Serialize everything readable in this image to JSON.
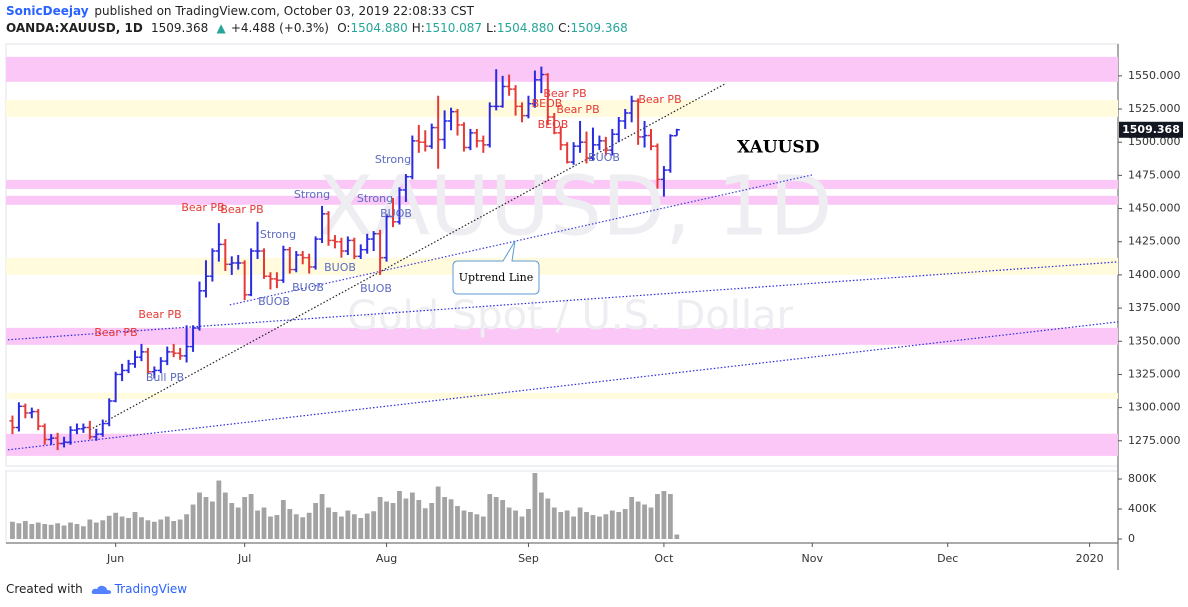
{
  "header": {
    "author": "SonicDeejay",
    "published": "published on TradingView.com, October 03, 2019 22:08:33 CST",
    "symbol": "OANDA:XAUUSD, 1D",
    "last": "1509.368",
    "arrow": "▲",
    "change": "+4.488 (+0.3%)",
    "quote": [
      {
        "label": "O:",
        "value": "1504.880"
      },
      {
        "label": "H:",
        "value": "1510.087"
      },
      {
        "label": "L:",
        "value": "1504.880"
      },
      {
        "label": "C:",
        "value": "1509.368"
      }
    ]
  },
  "footer": {
    "created": "Created with",
    "brand": "TradingView"
  },
  "chart_data": [
    {
      "type": "ohlc",
      "title": "XAUUSD",
      "watermark": "XAUUSD, 1D",
      "watermark_subtitle": "Gold Spot / U.S. Dollar",
      "last_label": "1509.368",
      "callout": "Uptrend Line",
      "up_color": "#2a2ae0",
      "down_color": "#e53935",
      "categories": [
        null,
        null,
        null,
        null,
        null,
        null,
        null,
        null,
        null,
        null,
        null,
        null,
        null,
        null,
        null,
        null,
        null,
        null,
        null,
        null,
        null,
        null,
        null,
        null,
        null,
        null,
        null,
        null,
        null,
        null,
        null,
        null,
        null,
        null,
        null,
        null,
        null,
        null,
        null,
        null,
        null,
        null,
        null,
        null,
        null,
        null,
        null,
        null,
        null,
        null,
        null,
        null,
        null,
        null,
        null,
        null,
        null,
        null,
        null,
        null,
        null,
        null,
        null,
        null,
        null,
        null,
        null,
        null,
        null,
        null,
        null,
        null,
        null,
        null,
        null,
        null,
        null,
        null,
        null,
        null,
        null,
        null,
        null,
        null,
        null,
        null,
        null,
        null,
        null,
        null,
        null,
        null,
        null,
        null,
        null,
        null,
        null,
        null,
        null,
        null,
        null,
        null,
        null,
        null
      ],
      "open": [
        1290,
        1285,
        1301,
        1296,
        1297,
        1286,
        1276,
        1277,
        1273,
        1274,
        1283,
        1284,
        1285,
        1278,
        1280,
        1288,
        1305,
        1325,
        1328,
        1333,
        1338,
        1342,
        1327,
        1328,
        1335,
        1342,
        1341,
        1339,
        1346,
        1360,
        1388,
        1399,
        1418,
        1423,
        1408,
        1409,
        1409,
        1385,
        1418,
        1418,
        1399,
        1397,
        1396,
        1419,
        1404,
        1415,
        1413,
        1406,
        1427,
        1446,
        1426,
        1425,
        1418,
        1426,
        1414,
        1419,
        1427,
        1431,
        1413,
        1444,
        1440,
        1464,
        1474,
        1501,
        1500,
        1497,
        1511,
        1502,
        1516,
        1523,
        1513,
        1496,
        1507,
        1501,
        1498,
        1527,
        1527,
        1542,
        1540,
        1527,
        1520,
        1529,
        1547,
        1551,
        1519,
        1507,
        1498,
        1485,
        1497,
        1500,
        1488,
        1498,
        1501,
        1494,
        1506,
        1516,
        1522,
        1531,
        1504,
        1505,
        1497,
        1472,
        1479,
        1504.88
      ],
      "high": [
        1294,
        1304,
        1303,
        1300,
        1299,
        1288,
        1280,
        1281,
        1278,
        1286,
        1288,
        1288,
        1290,
        1284,
        1291,
        1307,
        1327,
        1333,
        1336,
        1343,
        1348,
        1345,
        1331,
        1338,
        1346,
        1348,
        1345,
        1362,
        1362,
        1395,
        1411,
        1420,
        1439,
        1427,
        1414,
        1415,
        1411,
        1420,
        1440,
        1420,
        1402,
        1402,
        1422,
        1421,
        1418,
        1418,
        1416,
        1429,
        1452,
        1448,
        1430,
        1428,
        1429,
        1428,
        1423,
        1431,
        1433,
        1434,
        1446,
        1458,
        1466,
        1476,
        1505,
        1513,
        1509,
        1514,
        1535,
        1524,
        1526,
        1525,
        1515,
        1510,
        1510,
        1505,
        1530,
        1555,
        1550,
        1551,
        1543,
        1530,
        1535,
        1554,
        1557,
        1552,
        1522,
        1512,
        1500,
        1500,
        1516,
        1508,
        1511,
        1505,
        1504,
        1510,
        1519,
        1525,
        1535,
        1533,
        1516,
        1510,
        1499,
        1482,
        1506,
        1510.087
      ],
      "low": [
        1280,
        1282,
        1292,
        1292,
        1283,
        1272,
        1272,
        1268,
        1270,
        1272,
        1280,
        1281,
        1276,
        1275,
        1278,
        1286,
        1304,
        1320,
        1326,
        1330,
        1335,
        1325,
        1322,
        1326,
        1332,
        1338,
        1336,
        1334,
        1342,
        1358,
        1383,
        1395,
        1410,
        1403,
        1400,
        1404,
        1381,
        1384,
        1412,
        1397,
        1389,
        1390,
        1394,
        1401,
        1402,
        1408,
        1401,
        1404,
        1424,
        1422,
        1420,
        1413,
        1415,
        1412,
        1412,
        1416,
        1418,
        1400,
        1410,
        1436,
        1438,
        1455,
        1472,
        1492,
        1493,
        1495,
        1480,
        1495,
        1509,
        1505,
        1493,
        1494,
        1496,
        1492,
        1496,
        1524,
        1526,
        1535,
        1520,
        1515,
        1518,
        1526,
        1537,
        1513,
        1506,
        1494,
        1484,
        1483,
        1492,
        1484,
        1486,
        1494,
        1490,
        1490,
        1500,
        1510,
        1515,
        1498,
        1496,
        1494,
        1465,
        1459,
        1477,
        1504.88
      ],
      "close": [
        1285,
        1301,
        1296,
        1297,
        1286,
        1276,
        1277,
        1273,
        1274,
        1283,
        1284,
        1285,
        1278,
        1280,
        1288,
        1305,
        1325,
        1328,
        1333,
        1338,
        1342,
        1327,
        1328,
        1335,
        1342,
        1341,
        1339,
        1346,
        1360,
        1388,
        1399,
        1418,
        1423,
        1408,
        1409,
        1409,
        1385,
        1418,
        1418,
        1399,
        1397,
        1396,
        1419,
        1404,
        1415,
        1413,
        1406,
        1427,
        1446,
        1426,
        1425,
        1418,
        1426,
        1414,
        1419,
        1427,
        1431,
        1413,
        1444,
        1440,
        1464,
        1474,
        1501,
        1500,
        1497,
        1511,
        1502,
        1516,
        1523,
        1513,
        1496,
        1507,
        1501,
        1498,
        1527,
        1527,
        1542,
        1540,
        1527,
        1520,
        1529,
        1547,
        1551,
        1519,
        1507,
        1498,
        1485,
        1497,
        1500,
        1488,
        1498,
        1501,
        1494,
        1506,
        1516,
        1522,
        1531,
        1504,
        1505,
        1497,
        1472,
        1479,
        1504.88,
        1509.368
      ],
      "xlim": [
        -1,
        171.4
      ],
      "xticks": [
        {
          "value": 16,
          "label": "Jun"
        },
        {
          "value": 36,
          "label": "Jul"
        },
        {
          "value": 58,
          "label": "Aug"
        },
        {
          "value": 80,
          "label": "Sep"
        },
        {
          "value": 101,
          "label": "Oct"
        },
        {
          "value": 124,
          "label": "Nov"
        },
        {
          "value": 145,
          "label": "Dec"
        },
        {
          "value": 167,
          "label": "2020"
        }
      ],
      "ylim": [
        1256,
        1574
      ],
      "yticks": [
        {
          "value": 1275,
          "label": "1275.000"
        },
        {
          "value": 1300,
          "label": "1300.000"
        },
        {
          "value": 1325,
          "label": "1325.000"
        },
        {
          "value": 1350,
          "label": "1350.000"
        },
        {
          "value": 1375,
          "label": "1375.000"
        },
        {
          "value": 1400,
          "label": "1400.000"
        },
        {
          "value": 1425,
          "label": "1425.000"
        },
        {
          "value": 1450,
          "label": "1450.000"
        },
        {
          "value": 1475,
          "label": "1475.000"
        },
        {
          "value": 1500,
          "label": "1500.000"
        },
        {
          "value": 1525,
          "label": "1525.000"
        },
        {
          "value": 1550,
          "label": "1550.000"
        }
      ],
      "zones": [
        {
          "range": [
            1545.5,
            1564.3
          ],
          "color": "#fbc7f7"
        },
        {
          "range": [
            1519.1,
            1531.9
          ],
          "color": "#fffbdc"
        },
        {
          "range": [
            1464.8,
            1471.6
          ],
          "color": "#fbc7f7"
        },
        {
          "range": [
            1452.8,
            1459.6
          ],
          "color": "#fbc7f7"
        },
        {
          "range": [
            1400,
            1412.9
          ],
          "color": "#fffbdc"
        },
        {
          "range": [
            1347.3,
            1360.1
          ],
          "color": "#fbc7f7"
        },
        {
          "range": [
            1306.6,
            1311.1
          ],
          "color": "#fffbdc"
        },
        {
          "range": [
            1263.6,
            1280.3
          ],
          "color": "#fbc7f7"
        }
      ],
      "trend_lines": [
        {
          "points": [
            [
              12,
              1283.2
            ],
            [
              110.5,
              1544
            ]
          ],
          "color": "#222222"
        },
        {
          "points": [
            [
              -0.7,
              1268.2
            ],
            [
              171.4,
              1364.6
            ]
          ],
          "color": "#2a2ae0"
        },
        {
          "points": [
            [
              -0.7,
              1351.1
            ],
            [
              171.4,
              1409.8
            ]
          ],
          "color": "#2a2ae0"
        },
        {
          "points": [
            [
              33.7,
              1377.4
            ],
            [
              124,
              1475.4
            ]
          ],
          "color": "#3c3cdc"
        }
      ],
      "annotations": [
        {
          "text": "Bear PB",
          "color": "#e53935"
        },
        {
          "text": "Bear PB",
          "color": "#e53935"
        },
        {
          "text": "Bear PB",
          "color": "#e53935"
        },
        {
          "text": "Bear PB",
          "color": "#e53935"
        },
        {
          "text": "Bull PB",
          "color": "#5c6bc0"
        },
        {
          "text": "Strong",
          "color": "#5c6bc0"
        },
        {
          "text": "Strong",
          "color": "#5c6bc0"
        },
        {
          "text": "Strong",
          "color": "#5c6bc0"
        },
        {
          "text": "Strong",
          "color": "#5c6bc0"
        },
        {
          "text": "BUOB",
          "color": "#5c6bc0"
        },
        {
          "text": "BUOB",
          "color": "#5c6bc0"
        },
        {
          "text": "BUOB",
          "color": "#5c6bc0"
        },
        {
          "text": "BUOB",
          "color": "#5c6bc0"
        },
        {
          "text": "BUOB",
          "color": "#5c6bc0"
        },
        {
          "text": "BUOB",
          "color": "#5c6bc0"
        },
        {
          "text": "BEOB",
          "color": "#e53935"
        },
        {
          "text": "BEOB",
          "color": "#e53935"
        },
        {
          "text": "Bear PB",
          "color": "#e53935"
        },
        {
          "text": "Bear PB",
          "color": "#e53935"
        },
        {
          "text": "Bear PB",
          "color": "#e53935"
        }
      ]
    },
    {
      "type": "bar",
      "color": "#a3a3a3",
      "values": [
        230000,
        210000,
        240000,
        200000,
        220000,
        200000,
        190000,
        210000,
        180000,
        220000,
        200000,
        170000,
        260000,
        220000,
        250000,
        310000,
        350000,
        300000,
        280000,
        360000,
        290000,
        250000,
        230000,
        260000,
        300000,
        240000,
        260000,
        330000,
        460000,
        620000,
        560000,
        500000,
        780000,
        620000,
        480000,
        420000,
        560000,
        600000,
        380000,
        420000,
        300000,
        320000,
        520000,
        400000,
        330000,
        290000,
        350000,
        480000,
        600000,
        420000,
        360000,
        300000,
        380000,
        330000,
        280000,
        340000,
        370000,
        560000,
        500000,
        480000,
        640000,
        540000,
        620000,
        520000,
        410000,
        480000,
        700000,
        560000,
        530000,
        440000,
        380000,
        360000,
        330000,
        300000,
        600000,
        560000,
        520000,
        420000,
        380000,
        300000,
        400000,
        880000,
        620000,
        540000,
        420000,
        360000,
        380000,
        300000,
        420000,
        360000,
        320000,
        300000,
        330000,
        380000,
        360000,
        400000,
        560000,
        500000,
        460000,
        420000,
        600000,
        640000,
        600000,
        60000
      ],
      "ylim": [
        -53000,
        907000
      ],
      "yticks": [
        0,
        {
          "value": 400000,
          "label": "400K"
        },
        {
          "value": 800000,
          "label": "800K"
        }
      ]
    }
  ]
}
